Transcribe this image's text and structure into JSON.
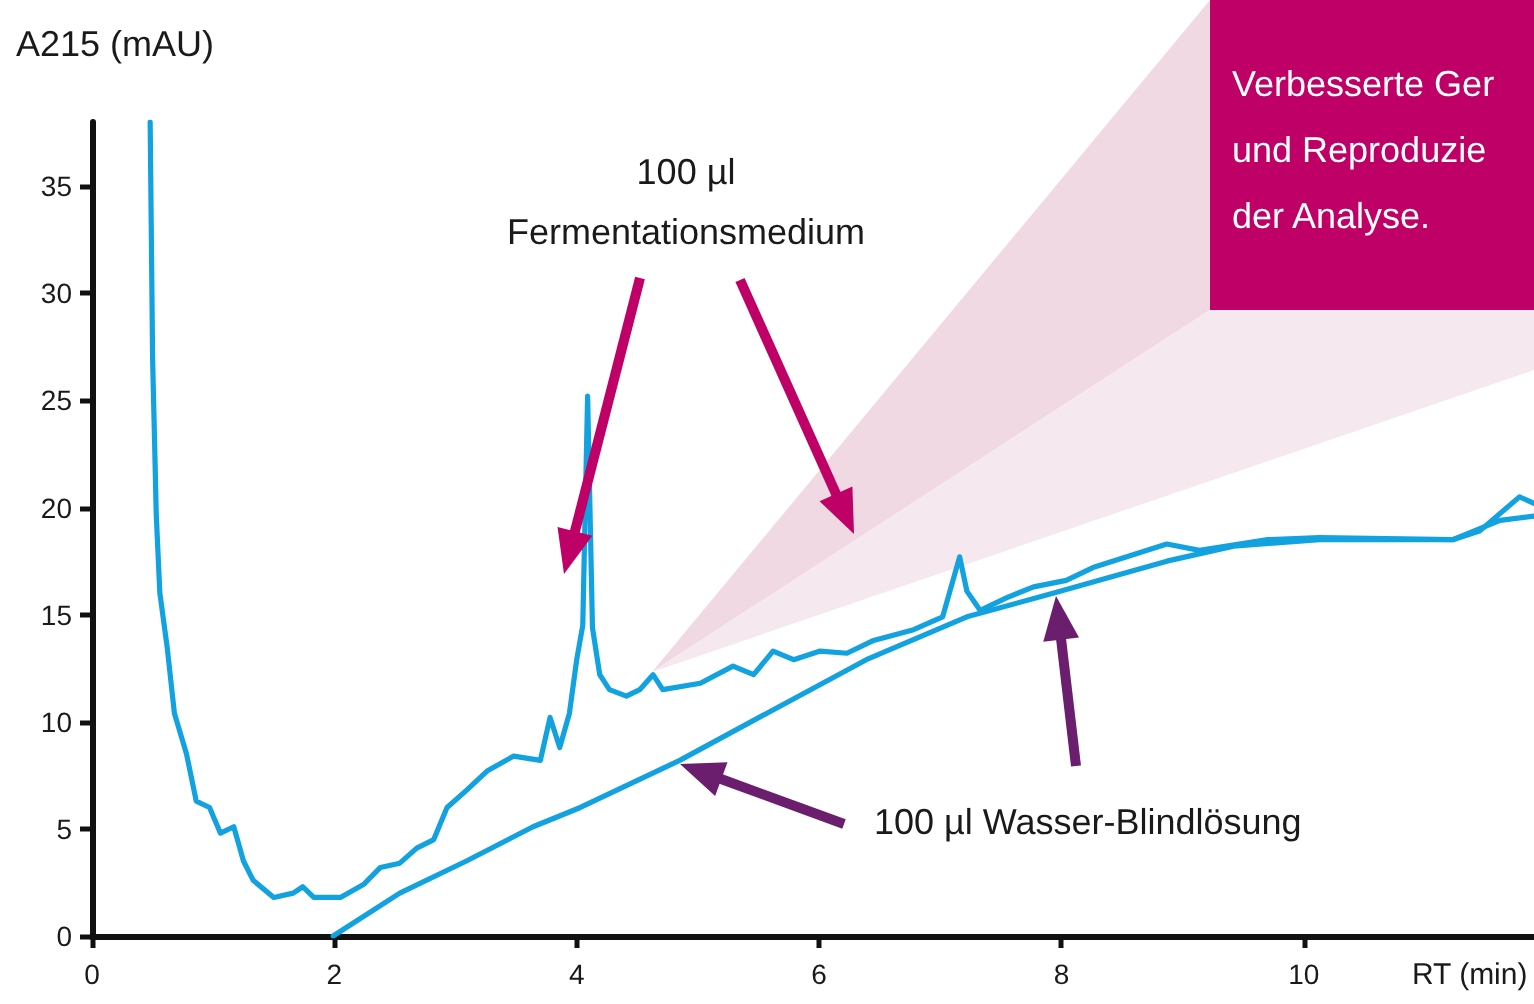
{
  "chart_data": {
    "type": "line",
    "xlabel": "RT (min)",
    "ylabel": "A215 (mAU)",
    "xlim": [
      0,
      11.9
    ],
    "xticks": [
      0,
      2,
      4,
      6,
      8,
      10
    ],
    "ylim": [
      0,
      38
    ],
    "yticks": [
      0,
      5,
      10,
      15,
      20,
      25,
      30,
      35
    ],
    "marker": "none",
    "line_style": "solid",
    "series": [
      {
        "color": "#12a2e0",
        "x": [
          0.48,
          0.5,
          0.52,
          0.53,
          0.56,
          0.62,
          0.68,
          0.78,
          0.86,
          0.97,
          1.06,
          1.17,
          1.25,
          1.33,
          1.5,
          1.66,
          1.74,
          1.83,
          2.05,
          2.24,
          2.38,
          2.54,
          2.68,
          2.82,
          2.93,
          3.09,
          3.26,
          3.48,
          3.7,
          3.78,
          3.86,
          3.94,
          4.0,
          4.05,
          4.09,
          4.13,
          4.19,
          4.27,
          4.41,
          4.52,
          4.63,
          4.71,
          5.02,
          5.29,
          5.46,
          5.62,
          5.79,
          6.01,
          6.23,
          6.45,
          6.78,
          7.02,
          7.16,
          7.22,
          7.33,
          7.55,
          7.77,
          8.04,
          8.26,
          8.87,
          9.14,
          9.69,
          10.13,
          11.23,
          11.45,
          11.78,
          11.9
        ],
        "values": [
          38,
          27,
          22.2,
          19.7,
          16,
          13.5,
          10.4,
          8.5,
          6.3,
          6,
          4.8,
          5.1,
          3.5,
          2.6,
          1.8,
          2,
          2.3,
          1.8,
          1.8,
          2.4,
          3.2,
          3.4,
          4.1,
          4.5,
          6,
          6.8,
          7.7,
          8.4,
          8.2,
          10.2,
          8.8,
          10.4,
          12.9,
          14.5,
          25.2,
          14.4,
          12.2,
          11.5,
          11.2,
          11.5,
          12.2,
          11.5,
          11.8,
          12.6,
          12.2,
          13.3,
          12.9,
          13.3,
          13.2,
          13.8,
          14.3,
          14.9,
          17.7,
          16.1,
          15.2,
          15.8,
          16.3,
          16.6,
          17.2,
          18.3,
          18,
          18.5,
          18.6,
          18.5,
          18.9,
          20.5,
          20.2
        ]
      },
      {
        "color": "#12a2e0",
        "x": [
          1.99,
          2.54,
          3.09,
          3.64,
          4.03,
          4.85,
          5.57,
          6.39,
          7.22,
          7.93,
          8.87,
          9.42,
          10.13,
          11.23,
          11.62,
          11.9
        ],
        "values": [
          0,
          2,
          3.5,
          5.1,
          6,
          8.2,
          10.4,
          12.9,
          14.9,
          16,
          17.5,
          18.2,
          18.5,
          18.5,
          19.4,
          19.6
        ]
      }
    ],
    "annotations": [
      "100 µl\nFermentationsmedium",
      "100 µl Wasser-Blindlösung",
      "Verbesserte Ger\nund Reproduzie\nder Analyse."
    ]
  }
}
